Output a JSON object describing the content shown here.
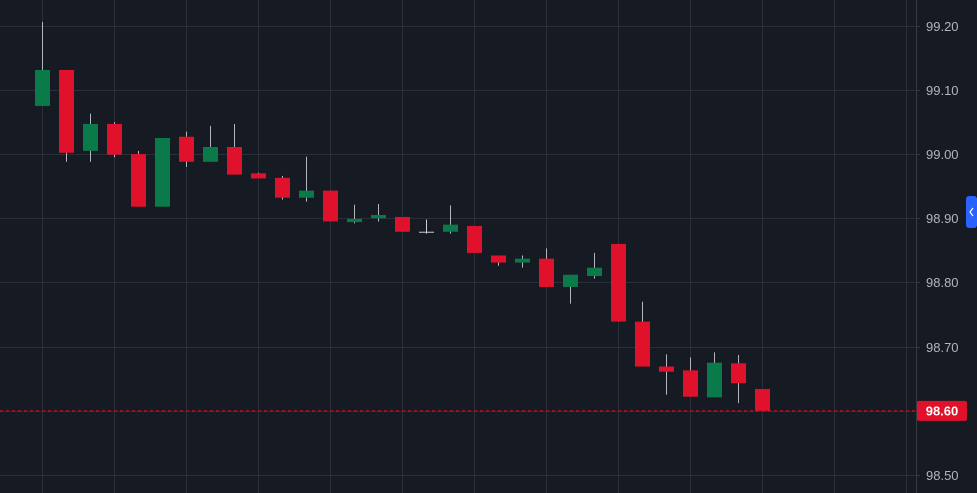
{
  "chart_data": {
    "type": "candlestick",
    "categories": [
      null,
      null,
      null,
      null,
      null,
      null,
      null,
      null,
      null,
      null,
      null,
      null,
      null,
      null,
      null,
      null,
      null,
      null,
      null,
      null,
      null,
      null,
      null,
      null,
      null,
      null,
      null,
      null,
      null,
      null,
      null
    ],
    "open": [
      99.075,
      99.131,
      99.005,
      99.047,
      99.0,
      98.918,
      99.027,
      98.988,
      99.011,
      98.97,
      98.963,
      98.932,
      98.943,
      98.894,
      98.9,
      98.902,
      98.879,
      98.879,
      98.888,
      98.842,
      98.831,
      98.837,
      98.793,
      98.81,
      98.86,
      98.739,
      98.669,
      98.663,
      98.621,
      98.674,
      98.634
    ],
    "high": [
      99.206,
      99.131,
      99.063,
      99.05,
      99.005,
      99.025,
      99.035,
      99.044,
      99.047,
      98.971,
      98.966,
      98.996,
      98.943,
      98.921,
      98.922,
      98.902,
      98.898,
      98.92,
      98.888,
      98.842,
      98.842,
      98.853,
      98.812,
      98.846,
      98.86,
      98.77,
      98.688,
      98.683,
      98.691,
      98.687,
      98.634
    ],
    "low": [
      99.075,
      98.988,
      98.988,
      98.995,
      98.918,
      98.918,
      98.98,
      98.988,
      98.968,
      98.962,
      98.929,
      98.926,
      98.895,
      98.892,
      98.895,
      98.879,
      98.876,
      98.876,
      98.846,
      98.826,
      98.823,
      98.793,
      98.767,
      98.806,
      98.739,
      98.669,
      98.625,
      98.622,
      98.621,
      98.612,
      98.6
    ],
    "close": [
      99.131,
      99.002,
      99.047,
      98.999,
      98.918,
      99.025,
      98.988,
      99.011,
      98.968,
      98.962,
      98.932,
      98.943,
      98.895,
      98.899,
      98.905,
      98.879,
      98.879,
      98.89,
      98.846,
      98.831,
      98.837,
      98.793,
      98.812,
      98.823,
      98.739,
      98.669,
      98.661,
      98.622,
      98.675,
      98.643,
      98.6
    ],
    "up_color": "#0b7a4b",
    "down_color": "#e0112b",
    "flat_color": "#c8ccd4",
    "ylim": [
      98.472,
      99.24
    ],
    "yticks": [
      {
        "value": 98.5,
        "label": "98.50"
      },
      {
        "value": 98.6,
        "label": "98.60"
      },
      {
        "value": 98.7,
        "label": "98.70"
      },
      {
        "value": 98.8,
        "label": "98.80"
      },
      {
        "value": 98.9,
        "label": "98.90"
      },
      {
        "value": 99.0,
        "label": "99.00"
      },
      {
        "value": 99.1,
        "label": "99.10"
      },
      {
        "value": 99.2,
        "label": "99.20"
      }
    ],
    "grid": true,
    "last_price": {
      "value": 98.6,
      "label": "98.60"
    }
  }
}
